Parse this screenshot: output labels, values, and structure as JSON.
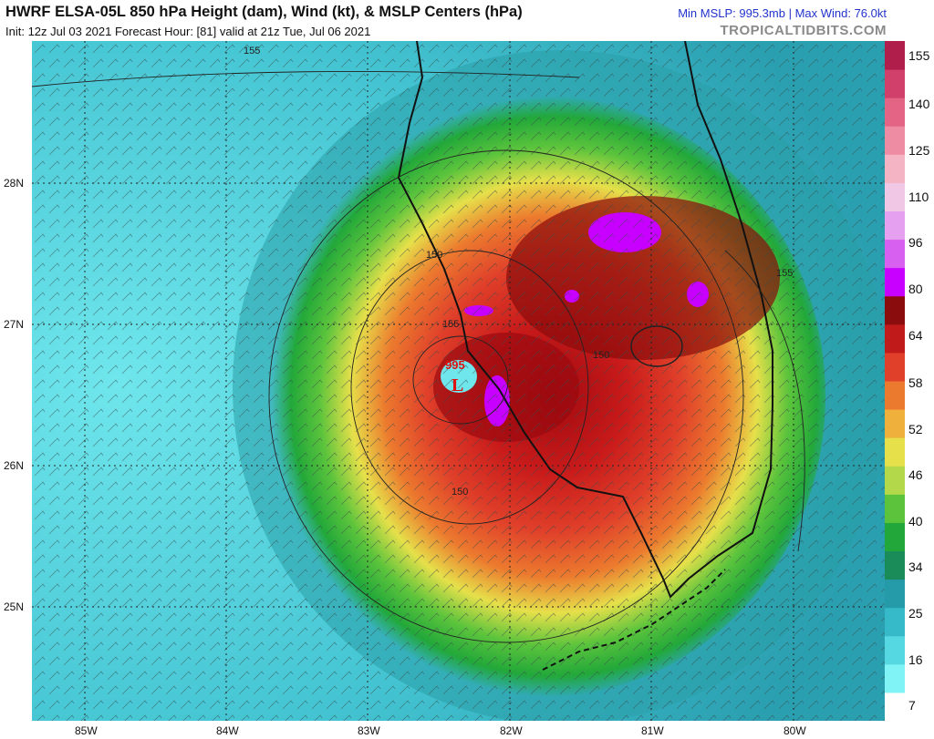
{
  "header": {
    "title": "HWRF ELSA-05L 850 hPa Height (dam), Wind (kt), & MSLP Centers (hPa)",
    "init_line": "Init: 12z Jul 03 2021   Forecast Hour: [81]   valid at 21z Tue, Jul 06 2021",
    "stats": "Min MSLP: 995.3mb | Max Wind: 76.0kt",
    "brand": "TROPICALTIDBITS.COM"
  },
  "map": {
    "lat_labels": [
      "28N",
      "27N",
      "26N",
      "25N"
    ],
    "lon_labels": [
      "85W",
      "84W",
      "83W",
      "82W",
      "81W",
      "80W"
    ],
    "contour_labels": [
      "155",
      "150",
      "150",
      "150",
      "155",
      "155"
    ],
    "low_pressure": {
      "value": "995",
      "symbol": "L"
    }
  },
  "colorbar": {
    "labels": [
      "155",
      "140",
      "125",
      "110",
      "96",
      "80",
      "64",
      "58",
      "52",
      "46",
      "40",
      "34",
      "25",
      "16",
      "7"
    ],
    "colors": [
      "#ffffff",
      "#7ff3f5",
      "#55d8e2",
      "#36b9c8",
      "#259aa8",
      "#1a8c5a",
      "#22a83a",
      "#5cc43c",
      "#b3d94a",
      "#e6e04a",
      "#f0b03c",
      "#ec7a2e",
      "#e0402a",
      "#c01a1a",
      "#8a0c0c",
      "#c800ff",
      "#d860f0",
      "#e6a0f0",
      "#f0c8e6",
      "#f4b4c4",
      "#ee8ca4",
      "#e46486",
      "#d0406a",
      "#b01e4c"
    ]
  }
}
